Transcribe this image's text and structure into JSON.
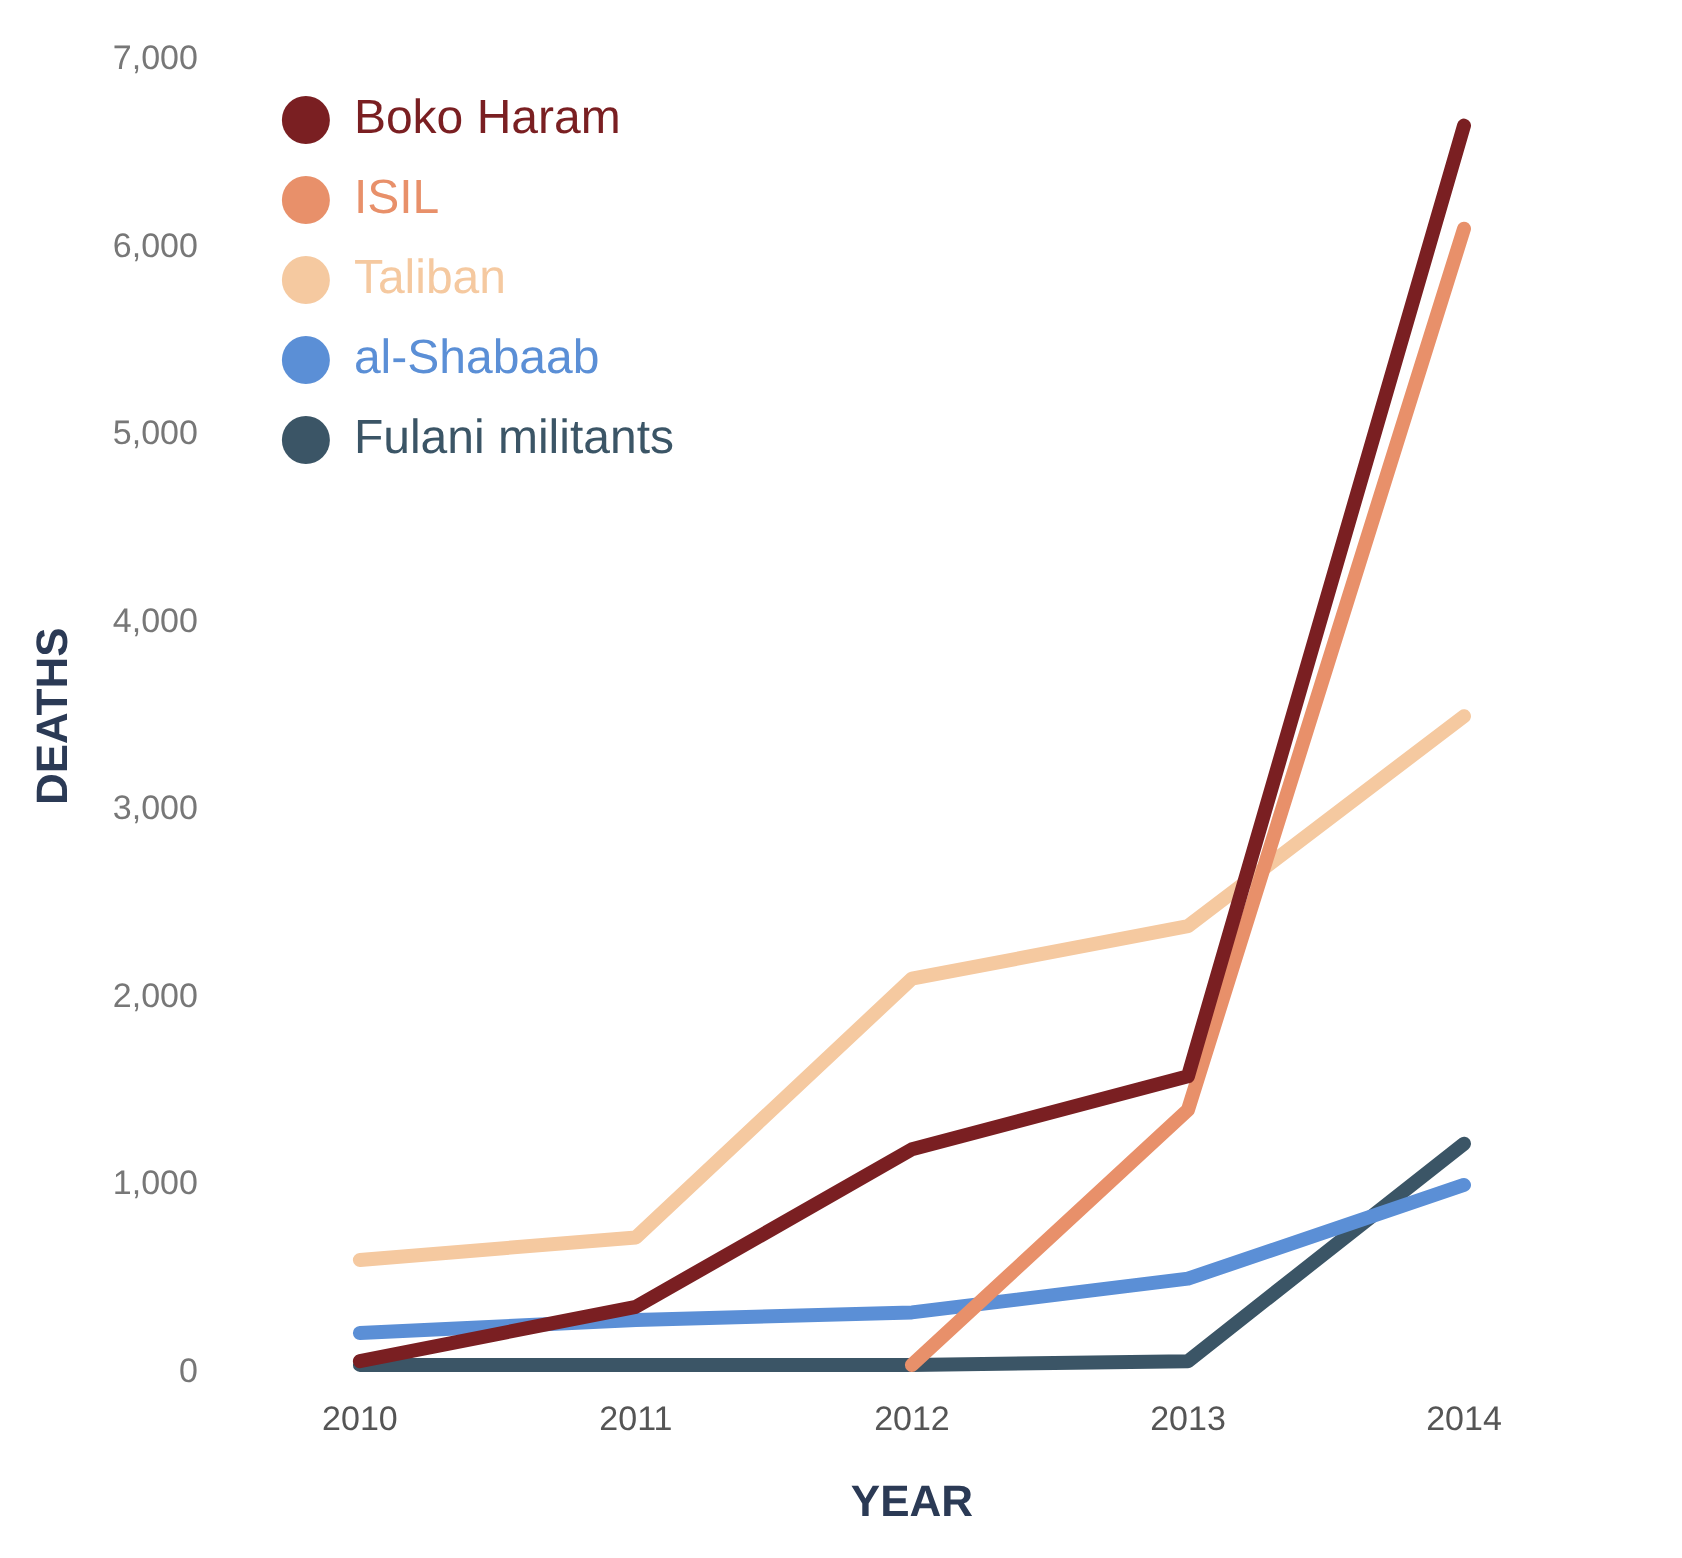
{
  "chart_data": {
    "type": "line",
    "xlabel": "YEAR",
    "ylabel": "DEATHS",
    "categories": [
      "2010",
      "2011",
      "2012",
      "2013",
      "2014"
    ],
    "series": [
      {
        "name": "Boko Haram",
        "color": "#7a1f22",
        "values": [
          60,
          350,
          1190,
          1580,
          6650
        ]
      },
      {
        "name": "ISIL",
        "color": "#e8906a",
        "values": [
          null,
          null,
          40,
          1400,
          6100
        ]
      },
      {
        "name": "Taliban",
        "color": "#f5c9a0",
        "values": [
          600,
          720,
          2100,
          2380,
          3500
        ]
      },
      {
        "name": "al-Shabaab",
        "color": "#5b8fd6",
        "values": [
          210,
          280,
          320,
          500,
          1000
        ]
      },
      {
        "name": "Fulani militants",
        "color": "#3b5566",
        "values": [
          40,
          40,
          40,
          60,
          1220
        ]
      }
    ],
    "ylim": [
      0,
      7000
    ],
    "yticks": [
      {
        "value": 0,
        "label": "0"
      },
      {
        "value": 1000,
        "label": "1,000"
      },
      {
        "value": 2000,
        "label": "2,000"
      },
      {
        "value": 3000,
        "label": "3,000"
      },
      {
        "value": 4000,
        "label": "4,000"
      },
      {
        "value": 5000,
        "label": "5,000"
      },
      {
        "value": 6000,
        "label": "6,000"
      },
      {
        "value": 7000,
        "label": "7,000"
      }
    ],
    "grid": false,
    "legend": "top left",
    "marker": "none",
    "line_style": "solid"
  }
}
